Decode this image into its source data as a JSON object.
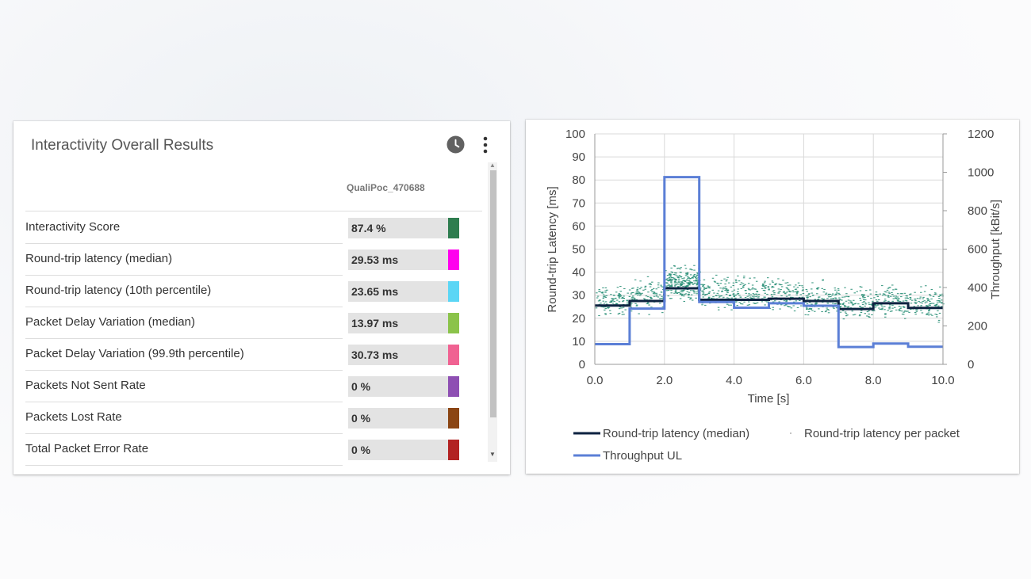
{
  "left_panel": {
    "title": "Interactivity Overall Results",
    "column_header": "QualiPoc_470688",
    "rows": [
      {
        "label": "Interactivity Score",
        "value": "87.4 %",
        "color": "#2e7d4f"
      },
      {
        "label": "Round-trip latency (median)",
        "value": "29.53 ms",
        "color": "#ff00ee"
      },
      {
        "label": "Round-trip latency (10th percentile)",
        "value": "23.65 ms",
        "color": "#5bd6f5"
      },
      {
        "label": "Packet Delay Variation (median)",
        "value": "13.97 ms",
        "color": "#8bc34a"
      },
      {
        "label": "Packet Delay Variation (99.9th percentile)",
        "value": "30.73 ms",
        "color": "#f06292"
      },
      {
        "label": "Packets Not Sent Rate",
        "value": "0 %",
        "color": "#8e4fb3"
      },
      {
        "label": "Packets Lost Rate",
        "value": "0 %",
        "color": "#8b4513"
      },
      {
        "label": "Total Packet Error Rate",
        "value": "0 %",
        "color": "#b22222"
      }
    ]
  },
  "chart_data": {
    "type": "line",
    "xlabel": "Time [s]",
    "ylabel": "Round-trip Latency [ms]",
    "y2label": "Throughput  [kBit/s]",
    "xlim": [
      0,
      10
    ],
    "ylim": [
      0,
      100
    ],
    "y2lim": [
      0,
      1200
    ],
    "xticks": [
      "0.0",
      "2.0",
      "4.0",
      "6.0",
      "8.0",
      "10.0"
    ],
    "yticks": [
      "0",
      "10",
      "20",
      "30",
      "40",
      "50",
      "60",
      "70",
      "80",
      "90",
      "100"
    ],
    "y2ticks": [
      "0",
      "200",
      "400",
      "600",
      "800",
      "1000",
      "1200"
    ],
    "grid": true,
    "legend_position": "bottom",
    "series": [
      {
        "name": "Round-trip latency (median)",
        "axis": "left",
        "color": "#0d2240",
        "steps": [
          {
            "x0": 0,
            "x1": 1,
            "y": 25.5
          },
          {
            "x0": 1,
            "x1": 2,
            "y": 27.5
          },
          {
            "x0": 2,
            "x1": 3,
            "y": 33
          },
          {
            "x0": 3,
            "x1": 4,
            "y": 28
          },
          {
            "x0": 4,
            "x1": 5,
            "y": 28
          },
          {
            "x0": 5,
            "x1": 6,
            "y": 28.5
          },
          {
            "x0": 6,
            "x1": 7,
            "y": 27.5
          },
          {
            "x0": 7,
            "x1": 8,
            "y": 24
          },
          {
            "x0": 8,
            "x1": 9,
            "y": 26.5
          },
          {
            "x0": 9,
            "x1": 10,
            "y": 24.5
          }
        ]
      },
      {
        "name": "Throughput UL",
        "axis": "right",
        "color": "#5b7fd6",
        "steps": [
          {
            "x0": 0,
            "x1": 1,
            "y": 105
          },
          {
            "x0": 1,
            "x1": 2,
            "y": 290
          },
          {
            "x0": 2,
            "x1": 3,
            "y": 975
          },
          {
            "x0": 3,
            "x1": 4,
            "y": 325
          },
          {
            "x0": 4,
            "x1": 5,
            "y": 295
          },
          {
            "x0": 5,
            "x1": 6,
            "y": 318
          },
          {
            "x0": 6,
            "x1": 7,
            "y": 305
          },
          {
            "x0": 7,
            "x1": 8,
            "y": 90
          },
          {
            "x0": 8,
            "x1": 9,
            "y": 108
          },
          {
            "x0": 9,
            "x1": 10,
            "y": 92
          }
        ]
      },
      {
        "name": "Round-trip latency per packet",
        "axis": "left",
        "type": "scatter",
        "color": "#1f8a70",
        "approx_segments": [
          {
            "x0": 0,
            "x1": 1,
            "ymin": 19,
            "ymax": 36
          },
          {
            "x0": 1,
            "x1": 2,
            "ymin": 20,
            "ymax": 40
          },
          {
            "x0": 2,
            "x1": 3,
            "ymin": 26,
            "ymax": 45
          },
          {
            "x0": 3,
            "x1": 4,
            "ymin": 21,
            "ymax": 40
          },
          {
            "x0": 4,
            "x1": 5,
            "ymin": 20,
            "ymax": 41
          },
          {
            "x0": 5,
            "x1": 6,
            "ymin": 20,
            "ymax": 40
          },
          {
            "x0": 6,
            "x1": 7,
            "ymin": 18,
            "ymax": 38
          },
          {
            "x0": 7,
            "x1": 8,
            "ymin": 17,
            "ymax": 36
          },
          {
            "x0": 8,
            "x1": 9,
            "ymin": 17,
            "ymax": 37
          },
          {
            "x0": 9,
            "x1": 10,
            "ymin": 17,
            "ymax": 36
          }
        ]
      }
    ],
    "legend": [
      {
        "label": "Round-trip latency (median)",
        "style": "line",
        "color": "#0d2240"
      },
      {
        "label": "Round-trip latency per packet",
        "style": "dot",
        "color": "#1f8a70"
      },
      {
        "label": "Throughput UL",
        "style": "line",
        "color": "#5b7fd6"
      }
    ]
  }
}
